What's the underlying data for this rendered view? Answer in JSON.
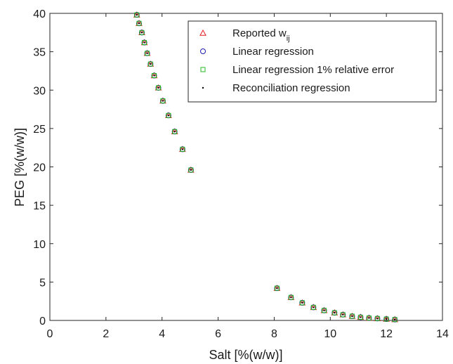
{
  "chart_data": {
    "type": "scatter",
    "title": "",
    "xlabel": "Salt [%(w/w)]",
    "ylabel": "PEG [%(w/w)]",
    "xlim": [
      0,
      14
    ],
    "ylim": [
      0,
      40
    ],
    "xticks": [
      0,
      2,
      4,
      6,
      8,
      10,
      12,
      14
    ],
    "yticks": [
      0,
      5,
      10,
      15,
      20,
      25,
      30,
      35,
      40
    ],
    "xtick_labels": [
      "0",
      "2",
      "4",
      "6",
      "8",
      "10",
      "12",
      "14"
    ],
    "ytick_labels": [
      "0",
      "5",
      "10",
      "15",
      "20",
      "25",
      "30",
      "35",
      "40"
    ],
    "grid": false,
    "legend_position": "top-right",
    "x": [
      3.1,
      3.18,
      3.28,
      3.37,
      3.47,
      3.59,
      3.72,
      3.87,
      4.03,
      4.23,
      4.45,
      4.73,
      5.03,
      8.1,
      8.6,
      9.0,
      9.4,
      9.78,
      10.15,
      10.45,
      10.78,
      11.08,
      11.38,
      11.68,
      12.0,
      12.3
    ],
    "series": [
      {
        "name": "Reported w",
        "name_sub": "ij",
        "marker": "triangle",
        "color": "#e8191c",
        "y": [
          39.8,
          38.7,
          37.5,
          36.2,
          34.8,
          33.4,
          31.9,
          30.3,
          28.6,
          26.7,
          24.6,
          22.3,
          19.6,
          4.2,
          3.0,
          2.3,
          1.7,
          1.3,
          1.0,
          0.75,
          0.55,
          0.42,
          0.32,
          0.25,
          0.18,
          0.12
        ]
      },
      {
        "name": "Linear regression",
        "marker": "circle",
        "color": "#1c1cb0",
        "y": [
          39.8,
          38.7,
          37.5,
          36.2,
          34.8,
          33.4,
          31.9,
          30.3,
          28.6,
          26.7,
          24.6,
          22.3,
          19.6,
          4.2,
          3.0,
          2.3,
          1.7,
          1.3,
          1.0,
          0.75,
          0.55,
          0.42,
          0.32,
          0.25,
          0.18,
          0.12
        ]
      },
      {
        "name": "Linear regression 1% relative error",
        "marker": "square",
        "color": "#22bb22",
        "y": [
          39.8,
          38.7,
          37.5,
          36.2,
          34.8,
          33.4,
          31.9,
          30.3,
          28.6,
          26.7,
          24.6,
          22.3,
          19.6,
          4.2,
          3.0,
          2.3,
          1.7,
          1.3,
          1.0,
          0.75,
          0.55,
          0.42,
          0.32,
          0.25,
          0.18,
          0.12
        ]
      },
      {
        "name": "Reconciliation regression",
        "marker": "dot",
        "color": "#000000",
        "y": [
          39.8,
          38.7,
          37.5,
          36.2,
          34.8,
          33.4,
          31.9,
          30.3,
          28.6,
          26.7,
          24.6,
          22.3,
          19.6,
          4.2,
          3.0,
          2.3,
          1.7,
          1.3,
          1.0,
          0.75,
          0.55,
          0.42,
          0.32,
          0.25,
          0.18,
          0.12
        ]
      }
    ]
  }
}
